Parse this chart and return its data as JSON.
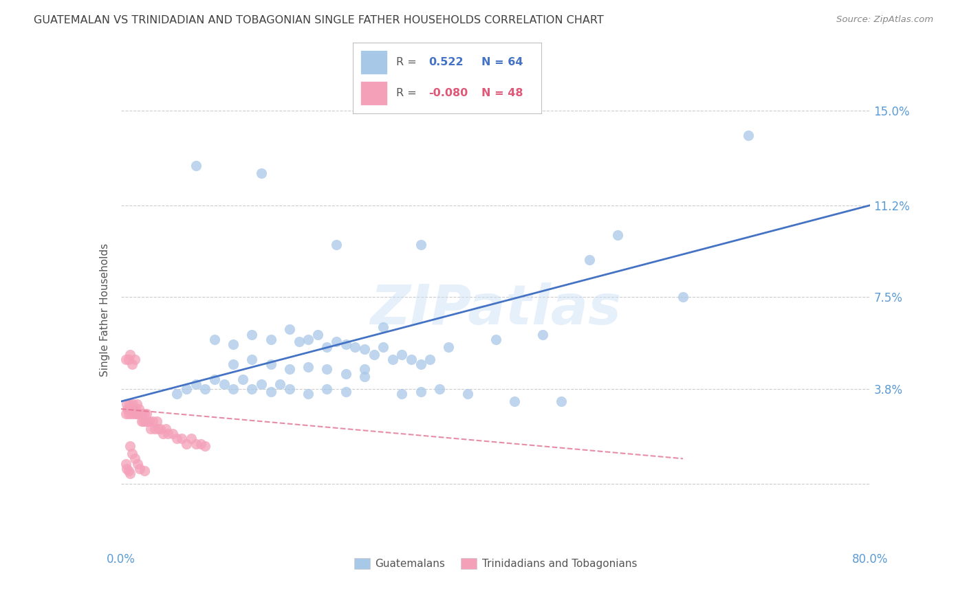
{
  "title": "GUATEMALAN VS TRINIDADIAN AND TOBAGONIAN SINGLE FATHER HOUSEHOLDS CORRELATION CHART",
  "source": "Source: ZipAtlas.com",
  "ylabel": "Single Father Households",
  "xlim": [
    0.0,
    0.8
  ],
  "ylim": [
    -0.025,
    0.165
  ],
  "yticks": [
    0.0,
    0.038,
    0.075,
    0.112,
    0.15
  ],
  "ytick_labels": [
    "",
    "3.8%",
    "7.5%",
    "11.2%",
    "15.0%"
  ],
  "xticks": [
    0.0,
    0.1,
    0.2,
    0.3,
    0.4,
    0.5,
    0.6,
    0.7,
    0.8
  ],
  "xtick_labels": [
    "0.0%",
    "",
    "",
    "",
    "",
    "",
    "",
    "",
    "80.0%"
  ],
  "watermark": "ZIPatlas",
  "blue_color": "#a8c8e8",
  "pink_color": "#f4a0b8",
  "line_blue": "#4472c4",
  "line_pink": "#e07090",
  "guatemalans_label": "Guatemalans",
  "trinidadians_label": "Trinidadians and Tobagonians",
  "blue_scatter_x": [
    0.08,
    0.15,
    0.23,
    0.32,
    0.1,
    0.12,
    0.14,
    0.16,
    0.18,
    0.19,
    0.2,
    0.21,
    0.22,
    0.23,
    0.24,
    0.25,
    0.26,
    0.27,
    0.28,
    0.29,
    0.3,
    0.31,
    0.32,
    0.33,
    0.12,
    0.14,
    0.16,
    0.18,
    0.2,
    0.22,
    0.24,
    0.26,
    0.06,
    0.07,
    0.08,
    0.09,
    0.1,
    0.11,
    0.12,
    0.13,
    0.14,
    0.15,
    0.16,
    0.17,
    0.18,
    0.2,
    0.22,
    0.24,
    0.5,
    0.53,
    0.6,
    0.67,
    0.35,
    0.4,
    0.45,
    0.28,
    0.26,
    0.3,
    0.32,
    0.34,
    0.37,
    0.42,
    0.47
  ],
  "blue_scatter_y": [
    0.128,
    0.125,
    0.096,
    0.096,
    0.058,
    0.056,
    0.06,
    0.058,
    0.062,
    0.057,
    0.058,
    0.06,
    0.055,
    0.057,
    0.056,
    0.055,
    0.054,
    0.052,
    0.055,
    0.05,
    0.052,
    0.05,
    0.048,
    0.05,
    0.048,
    0.05,
    0.048,
    0.046,
    0.047,
    0.046,
    0.044,
    0.043,
    0.036,
    0.038,
    0.04,
    0.038,
    0.042,
    0.04,
    0.038,
    0.042,
    0.038,
    0.04,
    0.037,
    0.04,
    0.038,
    0.036,
    0.038,
    0.037,
    0.09,
    0.1,
    0.075,
    0.14,
    0.055,
    0.058,
    0.06,
    0.063,
    0.046,
    0.036,
    0.037,
    0.038,
    0.036,
    0.033,
    0.033
  ],
  "pink_scatter_x": [
    0.005,
    0.006,
    0.007,
    0.008,
    0.009,
    0.01,
    0.011,
    0.012,
    0.013,
    0.014,
    0.015,
    0.016,
    0.017,
    0.018,
    0.019,
    0.02,
    0.021,
    0.022,
    0.023,
    0.024,
    0.025,
    0.026,
    0.027,
    0.028,
    0.03,
    0.032,
    0.034,
    0.036,
    0.038,
    0.04,
    0.042,
    0.045,
    0.048,
    0.05,
    0.055,
    0.06,
    0.065,
    0.07,
    0.075,
    0.08,
    0.085,
    0.09,
    0.01,
    0.012,
    0.015,
    0.018,
    0.02,
    0.025
  ],
  "pink_scatter_y": [
    0.028,
    0.032,
    0.03,
    0.028,
    0.032,
    0.03,
    0.028,
    0.03,
    0.032,
    0.028,
    0.03,
    0.028,
    0.032,
    0.028,
    0.03,
    0.028,
    0.028,
    0.025,
    0.028,
    0.025,
    0.028,
    0.025,
    0.028,
    0.025,
    0.025,
    0.022,
    0.025,
    0.022,
    0.025,
    0.022,
    0.022,
    0.02,
    0.022,
    0.02,
    0.02,
    0.018,
    0.018,
    0.016,
    0.018,
    0.016,
    0.016,
    0.015,
    0.015,
    0.012,
    0.01,
    0.008,
    0.006,
    0.005
  ],
  "pink_extra_x": [
    0.005,
    0.008,
    0.01,
    0.012,
    0.015,
    0.005,
    0.006,
    0.008,
    0.01
  ],
  "pink_extra_y": [
    0.05,
    0.05,
    0.052,
    0.048,
    0.05,
    0.008,
    0.006,
    0.005,
    0.004
  ],
  "blue_trendline_x": [
    0.0,
    0.8
  ],
  "blue_trendline_y": [
    0.033,
    0.112
  ],
  "pink_trendline_x": [
    0.0,
    0.6
  ],
  "pink_trendline_y": [
    0.03,
    0.01
  ],
  "background_color": "#ffffff",
  "grid_color": "#cccccc",
  "tick_color": "#5b9bd5",
  "title_color": "#404040",
  "axis_label_color": "#555555"
}
